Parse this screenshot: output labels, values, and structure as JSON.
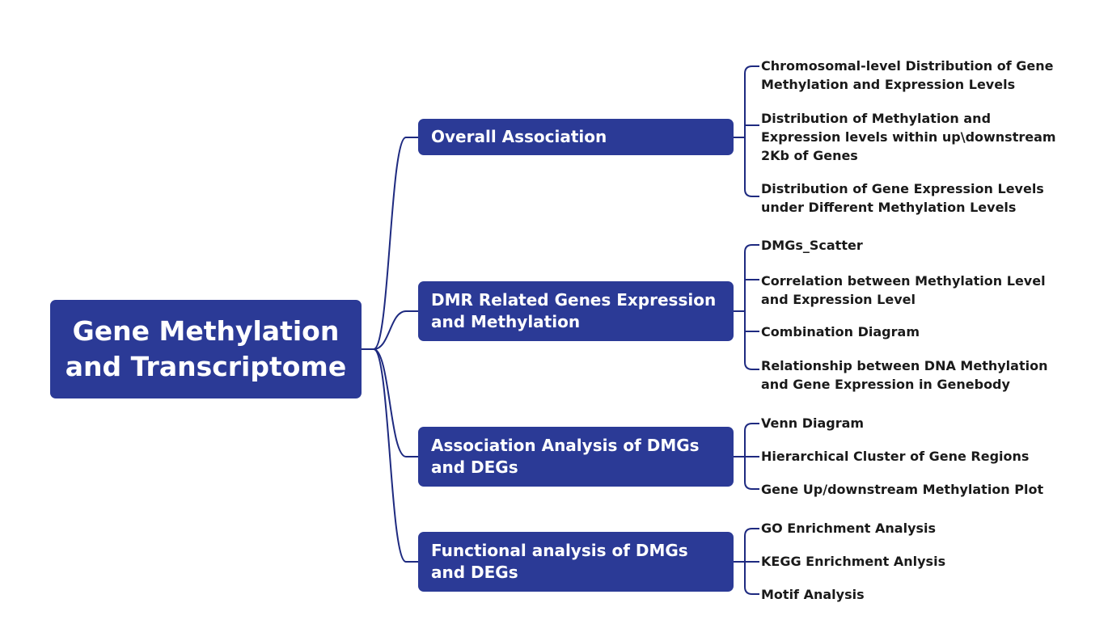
{
  "root": {
    "label": "Gene Methylation\nand Transcriptome"
  },
  "branches": [
    {
      "label": "Overall Association",
      "leaves": [
        "Chromosomal-level Distribution of Gene\nMethylation and Expression Levels",
        "Distribution of Methylation and\nExpression levels within up\\downstream\n2Kb of Genes",
        "Distribution of Gene Expression Levels\nunder Different Methylation Levels"
      ]
    },
    {
      "label": "DMR Related Genes Expression\nand Methylation",
      "leaves": [
        "DMGs_Scatter",
        "Correlation between Methylation Level\nand Expression Level",
        "Combination Diagram",
        "Relationship between DNA Methylation\nand Gene Expression in Genebody"
      ]
    },
    {
      "label": "Association Analysis of DMGs\nand DEGs",
      "leaves": [
        "Venn Diagram",
        "Hierarchical Cluster of Gene Regions",
        "Gene Up/downstream Methylation Plot"
      ]
    },
    {
      "label": "Functional analysis of DMGs\nand DEGs",
      "leaves": [
        "GO Enrichment Analysis",
        "KEGG Enrichment Anlysis",
        "Motif Analysis"
      ]
    }
  ],
  "colors": {
    "node_fill": "#2b3a96",
    "node_text": "#ffffff",
    "connector": "#1e2a80",
    "leaf_text": "#1a1a1a"
  }
}
